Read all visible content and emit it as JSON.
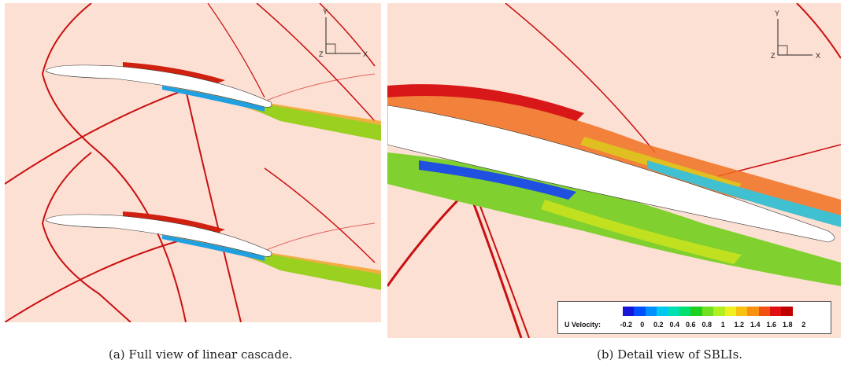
{
  "figure": {
    "subfigures": [
      {
        "caption": "(a) Full view of linear cascade.",
        "axis_labels": {
          "y": "Y",
          "x": "X",
          "z": "Z"
        }
      },
      {
        "caption": "(b) Detail view of SBLIs.",
        "axis_labels": {
          "y": "Y",
          "x": "X",
          "z": "Z"
        }
      }
    ],
    "legend": {
      "title": "U Velocity:",
      "ticks": [
        "-0.2",
        "0",
        "0.2",
        "0.4",
        "0.6",
        "0.8",
        "1",
        "1.2",
        "1.4",
        "1.6",
        "1.8",
        "2"
      ],
      "colors": [
        "#1616d8",
        "#0050ff",
        "#0090ff",
        "#00c8f0",
        "#00e0b0",
        "#00e070",
        "#20d020",
        "#70e020",
        "#b0f020",
        "#f0f020",
        "#f8c010",
        "#f89010",
        "#f05010",
        "#e01010",
        "#c00000"
      ]
    },
    "colors": {
      "background": "#fde0d4",
      "shock": "#c81010",
      "blade": "#ffffff"
    }
  }
}
